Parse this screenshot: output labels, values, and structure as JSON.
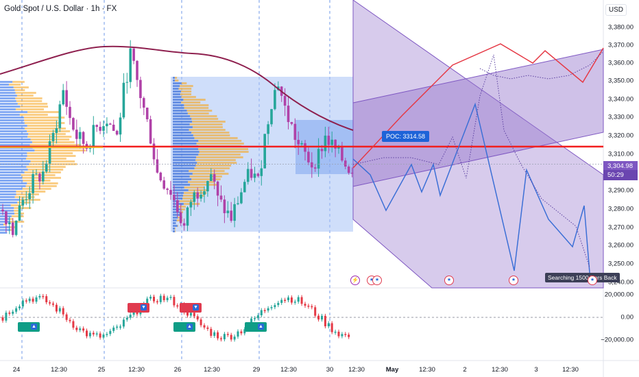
{
  "header": {
    "symbol_title": "Gold Spot / U.S. Dollar · 1h · FX",
    "currency": "USD"
  },
  "price_axis": {
    "ticks": [
      "3,380.00",
      "3,370.00",
      "3,360.00",
      "3,350.00",
      "3,340.00",
      "3,330.00",
      "3,320.00",
      "3,310.00",
      "3,290.00",
      "3,280.00",
      "3,270.00",
      "3,260.00",
      "3,250.00",
      "3,240.00"
    ],
    "current_price": "3,304.98",
    "countdown": "50:29"
  },
  "oscillator_axis": {
    "ticks": [
      "20,000.00",
      "0.00",
      "−20,000.00"
    ]
  },
  "time_axis": {
    "ticks": [
      "24",
      "12:30",
      "25",
      "12:30",
      "26",
      "12:30",
      "29",
      "12:30",
      "30",
      "12:30",
      "May",
      "12:30",
      "2",
      "12:30",
      "3",
      "12:30"
    ]
  },
  "annotations": {
    "poc_label": "POC: 3314.58",
    "search_label": "Searching 1500 Bars Back"
  },
  "colors": {
    "poc_line": "#f21e1e",
    "channel_fill": "#9575cd",
    "value_area": "#a7c2f5",
    "bull": "#26a69a",
    "bear": "#b042a8",
    "ma": "#8e1f4e",
    "forecast_up": "#e53945",
    "forecast_down": "#3b6fd6",
    "accent_badge": "#7e57c2"
  },
  "icons": [
    "lightning-event-icon",
    "us-flag-event-icon"
  ],
  "chart_data": {
    "type": "candlestick",
    "title": "Gold Spot / U.S. Dollar · 1h · FX",
    "ylim": [
      3240,
      3385
    ],
    "y_ticks": [
      3240,
      3250,
      3260,
      3270,
      3280,
      3290,
      3310,
      3320,
      3330,
      3340,
      3350,
      3360,
      3370,
      3380
    ],
    "last_price": 3304.98,
    "poc": 3314.58,
    "close_path": [
      [
        0,
        3280
      ],
      [
        3,
        3270
      ],
      [
        6,
        3285
      ],
      [
        9,
        3295
      ],
      [
        12,
        3300
      ],
      [
        15,
        3320
      ],
      [
        18,
        3345
      ],
      [
        20,
        3330
      ],
      [
        22,
        3320
      ],
      [
        25,
        3315
      ],
      [
        28,
        3325
      ],
      [
        31,
        3330
      ],
      [
        34,
        3320
      ],
      [
        36,
        3345
      ],
      [
        38,
        3365
      ],
      [
        40,
        3350
      ],
      [
        42,
        3335
      ],
      [
        44,
        3320
      ],
      [
        46,
        3300
      ],
      [
        48,
        3295
      ],
      [
        50,
        3290
      ],
      [
        52,
        3280
      ],
      [
        54,
        3270
      ],
      [
        56,
        3285
      ],
      [
        58,
        3290
      ],
      [
        60,
        3295
      ],
      [
        62,
        3300
      ],
      [
        64,
        3285
      ],
      [
        66,
        3280
      ],
      [
        68,
        3275
      ],
      [
        70,
        3285
      ],
      [
        72,
        3295
      ],
      [
        74,
        3300
      ],
      [
        76,
        3295
      ],
      [
        78,
        3320
      ],
      [
        80,
        3340
      ],
      [
        82,
        3350
      ],
      [
        84,
        3335
      ],
      [
        86,
        3325
      ],
      [
        88,
        3315
      ],
      [
        90,
        3310
      ],
      [
        92,
        3305
      ],
      [
        94,
        3310
      ],
      [
        96,
        3320
      ],
      [
        98,
        3315
      ],
      [
        100,
        3310
      ],
      [
        102,
        3305
      ],
      [
        104,
        3302
      ]
    ],
    "forecast_up": [
      [
        3306,
        0
      ],
      [
        3348,
        1
      ],
      [
        3370,
        2
      ],
      [
        3352,
        3
      ],
      [
        3367,
        4
      ],
      [
        3350,
        5
      ],
      [
        3367,
        6
      ]
    ],
    "forecast_down": [
      [
        3306,
        0
      ],
      [
        3280,
        1
      ],
      [
        3302,
        2
      ],
      [
        3285,
        3
      ],
      [
        3300,
        4
      ],
      [
        3282,
        5
      ],
      [
        3340,
        6
      ],
      [
        3245,
        7
      ],
      [
        3296,
        8
      ],
      [
        3256,
        9
      ],
      [
        3282,
        10
      ],
      [
        3243,
        11
      ]
    ]
  }
}
